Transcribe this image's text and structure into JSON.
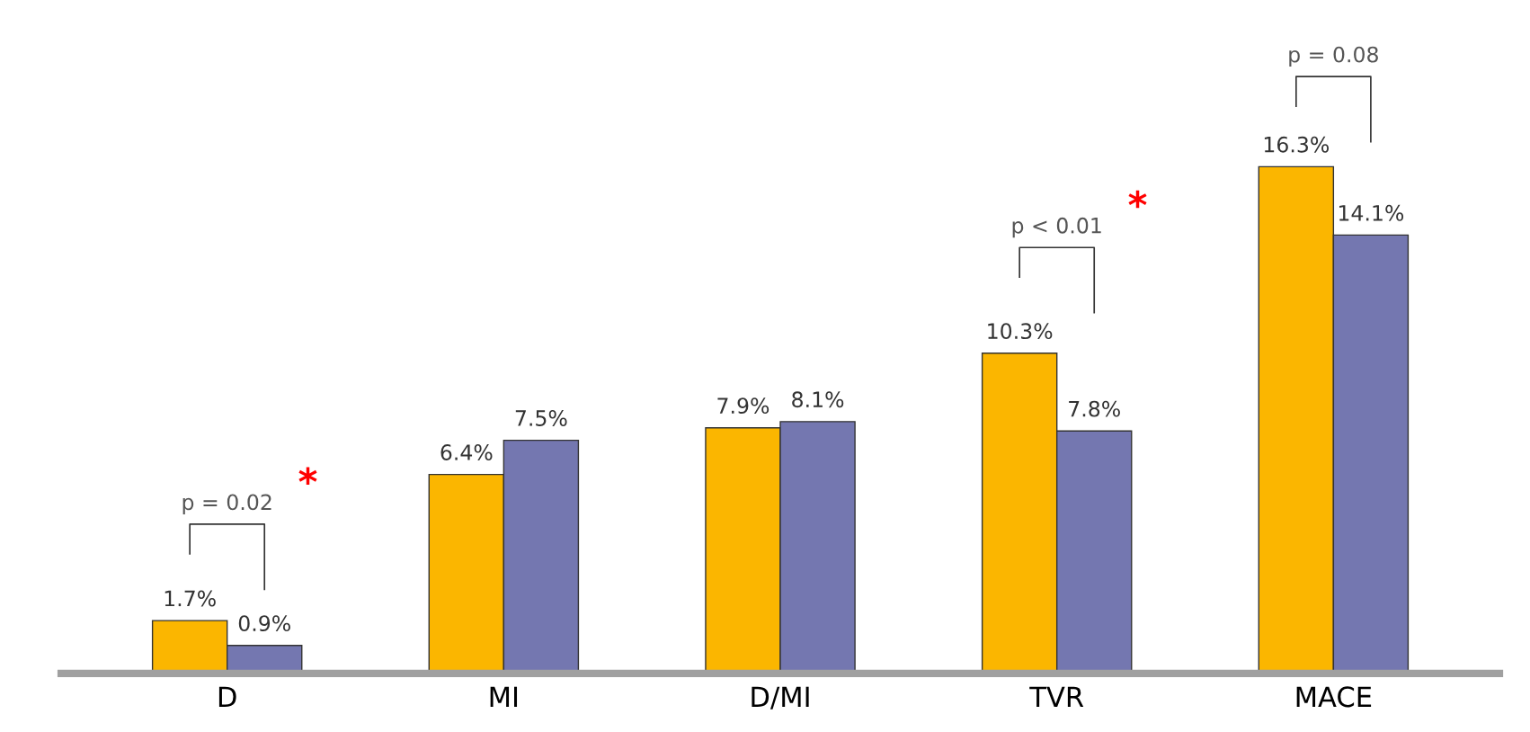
{
  "chart_data": {
    "type": "bar",
    "categories": [
      "D",
      "MI",
      "D/MI",
      "TVR",
      "MACE"
    ],
    "series": [
      {
        "color": "#fbb600",
        "values": [
          1.7,
          6.4,
          7.9,
          10.3,
          16.3
        ],
        "value_labels": [
          "1.7%",
          "6.4%",
          "7.9%",
          "10.3%",
          "16.3%"
        ]
      },
      {
        "color": "#7477b0",
        "values": [
          0.9,
          7.5,
          8.1,
          7.8,
          14.1
        ],
        "value_labels": [
          "0.9%",
          "7.5%",
          "8.1%",
          "7.8%",
          "14.1%"
        ]
      }
    ],
    "annotations": [
      "p = 0.02",
      "p < 0.01",
      "p = 0.08",
      "*",
      "*"
    ],
    "grid": false,
    "legend": false
  }
}
